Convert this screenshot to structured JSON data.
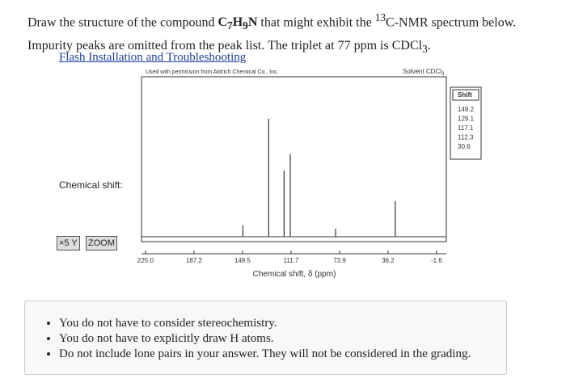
{
  "question": [
    "Draw the structure of the compound ",
    "C",
    "7",
    "H",
    "9",
    "N",
    " that might exhibit the ",
    "13",
    "C-NMR spectrum below. Impurity peaks are omitted from the peak list. The triplet at 77 ppm is CDCl",
    "3",
    "."
  ],
  "link": "Flash Installation and Troubleshooting",
  "chemical_shift_label": "Chemical shift:",
  "buttons": [
    "×5 Y",
    "ZOOM"
  ],
  "chart_data": {
    "type": "stick",
    "permission": "Used with permission from Aldrich Chemical Co., Inc.",
    "solvent": [
      "Solvent CDCl",
      "3"
    ],
    "x_label": "Chemical shift, δ (ppm)",
    "x": [
      149.2,
      129.1,
      117.1,
      112.3,
      77,
      30.6
    ],
    "values": [
      7,
      73,
      41,
      51,
      5,
      22
    ],
    "color": "#333333",
    "xlim": [
      228.1,
      -9.2
    ],
    "ylim": [
      0,
      100
    ],
    "xticks": [
      {
        "value": 225,
        "label": "225.0"
      },
      187.2,
      149.5,
      111.7,
      73.9,
      36.2,
      -1.6
    ]
  },
  "shift_table": {
    "header": "Shift",
    "values": [
      149.2,
      129.1,
      117.1,
      112.3,
      30.6
    ]
  },
  "notes": [
    "You do not have to consider stereochemistry.",
    "You do not have to explicitly draw H atoms.",
    "Do not include lone pairs in your answer. They will not be considered in the grading."
  ]
}
